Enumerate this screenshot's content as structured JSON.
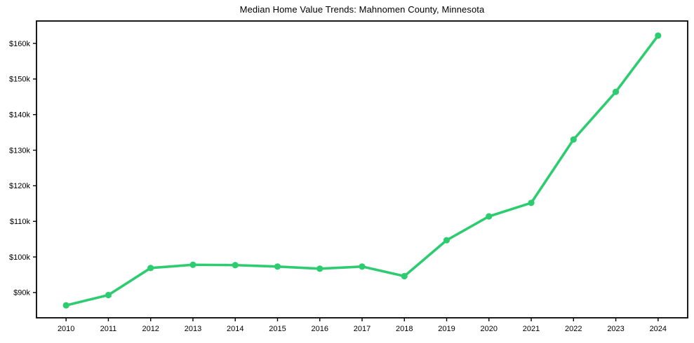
{
  "chart_data": {
    "type": "line",
    "title": "Median Home Value Trends: Mahnomen County, Minnesota",
    "xlabel": "",
    "ylabel": "",
    "x": [
      2010,
      2011,
      2012,
      2013,
      2014,
      2015,
      2016,
      2017,
      2018,
      2019,
      2020,
      2021,
      2022,
      2023,
      2024
    ],
    "x_tick_labels": [
      "2010",
      "2011",
      "2012",
      "2013",
      "2014",
      "2015",
      "2016",
      "2017",
      "2018",
      "2019",
      "2020",
      "2021",
      "2022",
      "2023",
      "2024"
    ],
    "values": [
      86400,
      89300,
      96900,
      97800,
      97700,
      97300,
      96700,
      97300,
      94600,
      104700,
      111400,
      115200,
      133000,
      146400,
      162200
    ],
    "y_ticks": [
      {
        "value": 90000,
        "label": "$90k"
      },
      {
        "value": 100000,
        "label": "$100k"
      },
      {
        "value": 110000,
        "label": "$110k"
      },
      {
        "value": 120000,
        "label": "$120k"
      },
      {
        "value": 130000,
        "label": "$130k"
      },
      {
        "value": 140000,
        "label": "$140k"
      },
      {
        "value": 150000,
        "label": "$150k"
      },
      {
        "value": 160000,
        "label": "$160k"
      }
    ],
    "ylim": [
      82900,
      166300
    ],
    "xlim": [
      2009.3,
      2024.7
    ],
    "grid": false,
    "legend_position": "none",
    "line_color": "#2ecc71",
    "marker_color": "#2ecc71",
    "axis_color": "#000000",
    "background_color": "#ffffff"
  }
}
